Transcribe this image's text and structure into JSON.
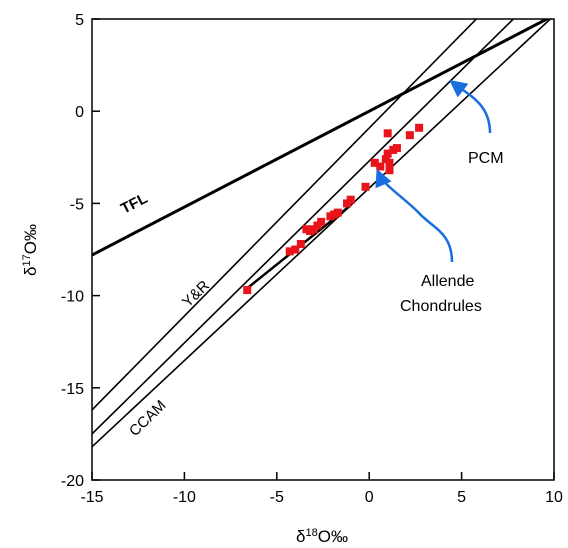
{
  "chart_data": {
    "type": "scatter",
    "title": "",
    "xlabel": {
      "prefix": "δ",
      "sup": "18",
      "suffix": "O‰"
    },
    "ylabel": {
      "prefix": "δ",
      "sup": "17",
      "suffix": "O‰"
    },
    "xlim": [
      -15,
      10
    ],
    "ylim": [
      -20,
      5
    ],
    "xticks": [
      -15,
      -10,
      -5,
      0,
      5,
      10
    ],
    "yticks": [
      -20,
      -15,
      -10,
      -5,
      0,
      5
    ],
    "grid": false,
    "reference_lines": [
      {
        "name": "TFL",
        "style": "thick",
        "points": [
          [
            -15,
            -7.8
          ],
          [
            10,
            5.2
          ]
        ]
      },
      {
        "name": "Y&R",
        "style": "thin",
        "points": [
          [
            -15,
            -16.2
          ],
          [
            5.8,
            5
          ]
        ]
      },
      {
        "name": "PCM",
        "style": "thin",
        "points": [
          [
            -15,
            -17.5
          ],
          [
            7.8,
            5
          ]
        ]
      },
      {
        "name": "CCAM",
        "style": "thin",
        "points": [
          [
            -15,
            -18.2
          ],
          [
            9.8,
            5
          ]
        ]
      }
    ],
    "chondrule_trend": {
      "points": [
        [
          -6.6,
          -9.6
        ],
        [
          -1,
          -5.1
        ]
      ]
    },
    "series": [
      {
        "name": "Allende Chondrules",
        "color": "#e8141a",
        "marker": "square",
        "points": [
          [
            -6.6,
            -9.7
          ],
          [
            -4.3,
            -7.6
          ],
          [
            -4.0,
            -7.5
          ],
          [
            -3.7,
            -7.2
          ],
          [
            -3.4,
            -6.4
          ],
          [
            -3.2,
            -6.5
          ],
          [
            -3.0,
            -6.4
          ],
          [
            -2.8,
            -6.2
          ],
          [
            -2.6,
            -6.0
          ],
          [
            -2.1,
            -5.7
          ],
          [
            -1.9,
            -5.6
          ],
          [
            -1.7,
            -5.5
          ],
          [
            -1.2,
            -5.0
          ],
          [
            -1.0,
            -4.8
          ],
          [
            -0.2,
            -4.1
          ],
          [
            0.3,
            -2.8
          ],
          [
            0.6,
            -3.0
          ],
          [
            0.9,
            -2.6
          ],
          [
            1.0,
            -2.3
          ],
          [
            1.1,
            -2.8
          ],
          [
            1.1,
            -3.2
          ],
          [
            1.3,
            -2.1
          ],
          [
            1.5,
            -2.0
          ],
          [
            2.2,
            -1.3
          ],
          [
            2.7,
            -0.9
          ],
          [
            1.0,
            -1.2
          ]
        ]
      }
    ],
    "annotations": [
      {
        "key": "allende",
        "lines": [
          "Allende",
          "Chondrules"
        ],
        "arrow_color": "#1a6fe0"
      },
      {
        "key": "pcm",
        "lines": [
          "PCM"
        ],
        "arrow_color": "#1a6fe0"
      }
    ]
  }
}
